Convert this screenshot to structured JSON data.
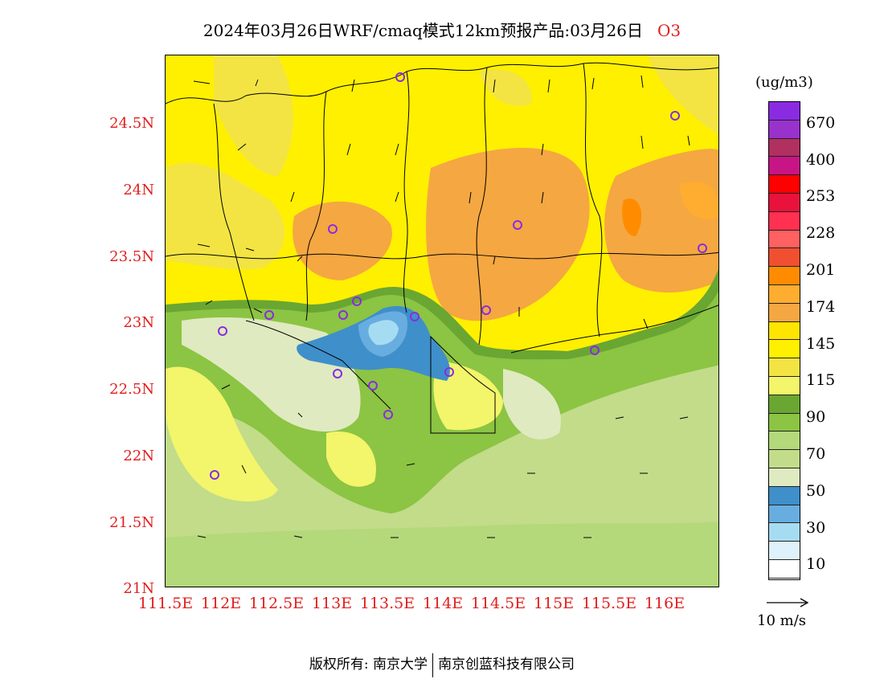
{
  "title": {
    "text": "2024年03月26日WRF/cmaq模式12km预报产品:03月26日",
    "pollutant": "O3"
  },
  "axes": {
    "y_ticks": [
      "24.5N",
      "24N",
      "23.5N",
      "23N",
      "22.5N",
      "22N",
      "21.5N",
      "21N"
    ],
    "x_ticks": [
      "111.5E",
      "112E",
      "112.5E",
      "113E",
      "113.5E",
      "114E",
      "114.5E",
      "115E",
      "115.5E",
      "116E"
    ],
    "label_color": "#e0201f"
  },
  "colorbar": {
    "unit": "(ug/m3)",
    "colors": [
      "#8a2be2",
      "#9932cc",
      "#b03060",
      "#c71585",
      "#ff0000",
      "#e8123c",
      "#ff3050",
      "#ff6060",
      "#f05030",
      "#ff8c00",
      "#ffad30",
      "#f5a742",
      "#ffe400",
      "#fff000",
      "#f3e443",
      "#f3f56a",
      "#6aa632",
      "#8cc443",
      "#b4d97a",
      "#c2dc8a",
      "#dfeac0",
      "#3f8fca",
      "#68ade0",
      "#a6dcf2",
      "#dff1fa",
      "#ffffff"
    ],
    "labels": [
      "670",
      "400",
      "253",
      "228",
      "201",
      "174",
      "145",
      "115",
      "90",
      "70",
      "50",
      "30",
      "10"
    ]
  },
  "wind_reference": {
    "label": "10 m/s"
  },
  "footer": {
    "left": "版权所有: 南京大学",
    "right": "南京创蓝科技有限公司"
  }
}
